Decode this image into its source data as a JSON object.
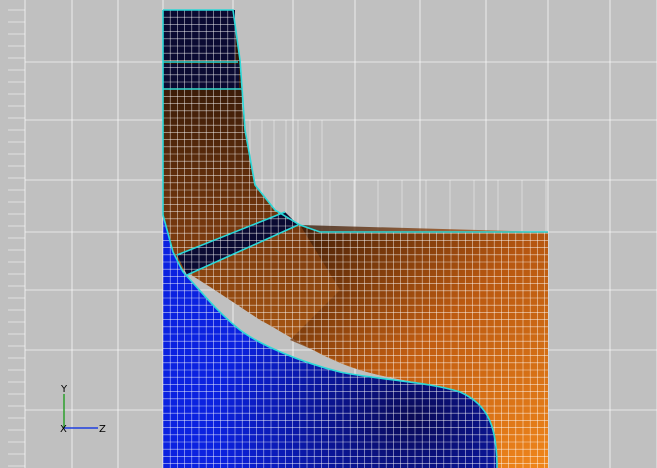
{
  "viewer": {
    "background_color": "#c0c0c0",
    "grid_line_color": "#ffffff",
    "coarse_grid": "on",
    "refined_mesh": "on"
  },
  "regions": [
    {
      "name": "fluid-upper-channel",
      "color_top": "#0d0d2a",
      "color_bottom": "#f07a14"
    },
    {
      "name": "blue-solid",
      "color": "#0a1ed8"
    },
    {
      "name": "dark-inlet-bands",
      "color": "#0a0a32"
    },
    {
      "name": "outlet-region",
      "color": "#e27315"
    }
  ],
  "boundary_color": "#2ad8d8",
  "triad": {
    "y_label": "Y",
    "x_label": "X",
    "z_label": "Z",
    "y_axis_color": "#2ca02c",
    "z_axis_color": "#1f3fe0"
  }
}
